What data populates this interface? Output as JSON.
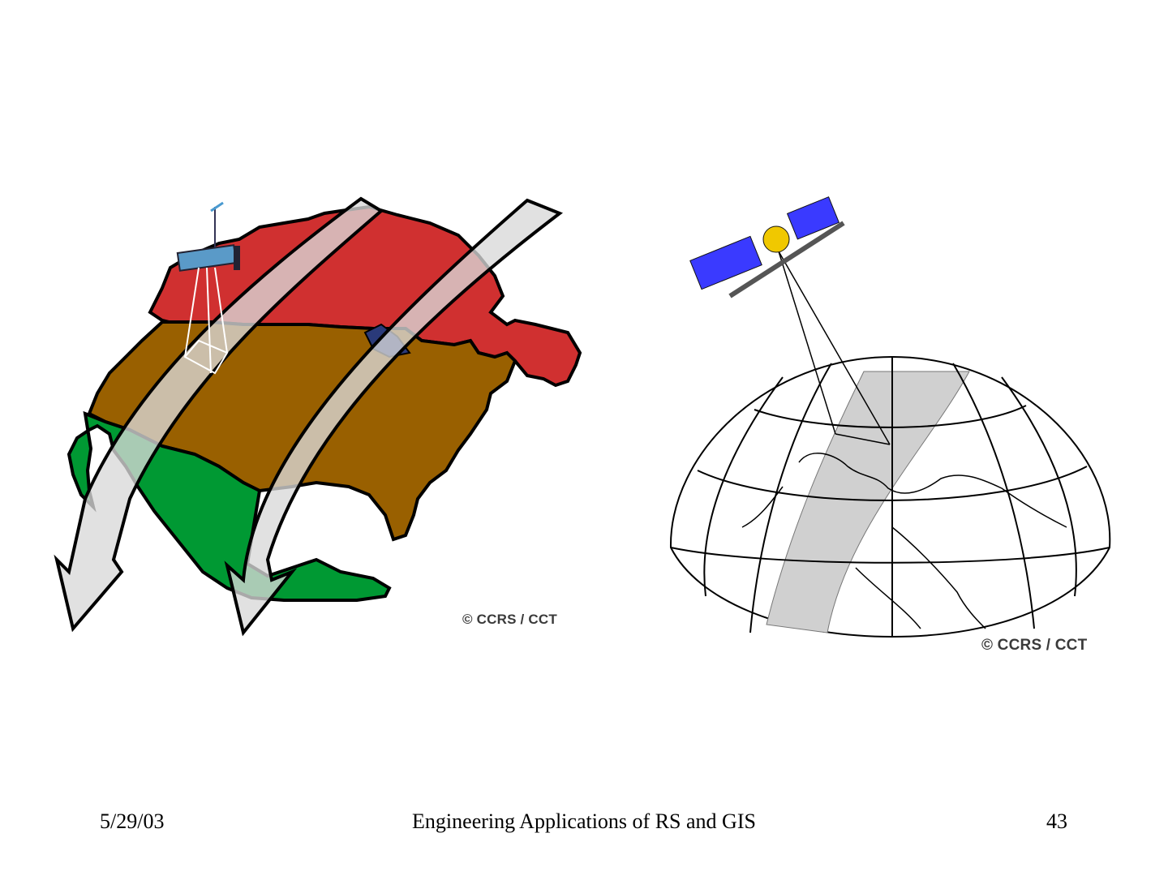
{
  "slide": {
    "figures": [
      {
        "id": "left",
        "credit": "© CCRS / CCT",
        "colors": {
          "canada": "#d03030",
          "usa": "#996000",
          "mexico": "#009933",
          "swath": "#d8d8d8"
        }
      },
      {
        "id": "right",
        "credit": "© CCRS / CCT",
        "colors": {
          "swath": "#d0d0d0",
          "satellite_panels": "#3a3aff",
          "satellite_body": "#f0c800"
        }
      }
    ],
    "footer": {
      "date": "5/29/03",
      "title": "Engineering Applications of RS and GIS",
      "page_number": "43"
    }
  }
}
